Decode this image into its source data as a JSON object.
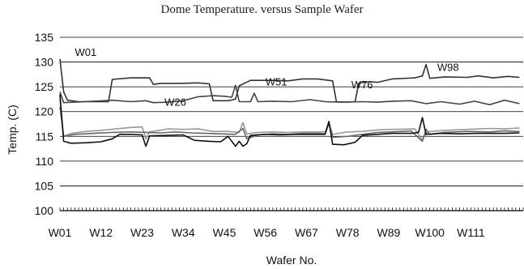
{
  "chart_data": {
    "type": "line",
    "title": "Dome Temperature. versus Sample Wafer",
    "xlabel": "Wafer No.",
    "ylabel": "Temp. (C)",
    "ylim": [
      100,
      135
    ],
    "yticks": [
      "135",
      "130",
      "125",
      "120",
      "115",
      "110",
      "105",
      "100"
    ],
    "ytick_values": [
      135,
      130,
      125,
      120,
      115,
      110,
      105,
      100
    ],
    "xtick_labels": [
      "W01",
      "W12",
      "W23",
      "W34",
      "W45",
      "W56",
      "W67",
      "W78",
      "W89",
      "W100",
      "W111"
    ],
    "xtick_positions": [
      1,
      12,
      23,
      34,
      45,
      56,
      67,
      78,
      89,
      100,
      111
    ],
    "xlim": [
      1,
      125
    ],
    "grid": true,
    "annotations": [
      {
        "text": "W01",
        "x": 5,
        "y": 131.2
      },
      {
        "text": "W26",
        "x": 29,
        "y": 121.2
      },
      {
        "text": "W51",
        "x": 56,
        "y": 125.3
      },
      {
        "text": "W76",
        "x": 79,
        "y": 124.7
      },
      {
        "text": "W98",
        "x": 102,
        "y": 128.2
      }
    ],
    "series": [
      {
        "color": "#333333",
        "points": [
          [
            1,
            130.6
          ],
          [
            2,
            124.0
          ],
          [
            3,
            122.3
          ],
          [
            6,
            122.0
          ],
          [
            10,
            122.0
          ],
          [
            14,
            122.0
          ],
          [
            15,
            126.5
          ],
          [
            20,
            126.8
          ],
          [
            25,
            126.8
          ],
          [
            26,
            125.5
          ],
          [
            28,
            125.7
          ],
          [
            33,
            125.7
          ],
          [
            38,
            125.8
          ],
          [
            41,
            125.6
          ],
          [
            42,
            122.2
          ],
          [
            46,
            122.2
          ],
          [
            48,
            122.5
          ],
          [
            49,
            125.2
          ],
          [
            52,
            126.3
          ],
          [
            58,
            126.3
          ],
          [
            62,
            126.2
          ],
          [
            66,
            126.6
          ],
          [
            70,
            126.6
          ],
          [
            74,
            126.2
          ],
          [
            75,
            122.0
          ],
          [
            78,
            121.9
          ],
          [
            80,
            122.0
          ],
          [
            81,
            125.8
          ],
          [
            84,
            126.0
          ],
          [
            86,
            125.9
          ],
          [
            90,
            126.6
          ],
          [
            96,
            126.8
          ],
          [
            98,
            127.2
          ],
          [
            99,
            129.5
          ],
          [
            100,
            126.7
          ],
          [
            104,
            127.0
          ],
          [
            110,
            126.9
          ],
          [
            113,
            127.2
          ],
          [
            117,
            126.8
          ],
          [
            121,
            127.1
          ],
          [
            124,
            126.9
          ]
        ]
      },
      {
        "color": "#444444",
        "points": [
          [
            1,
            124.0
          ],
          [
            2,
            121.8
          ],
          [
            5,
            121.9
          ],
          [
            10,
            122.1
          ],
          [
            15,
            122.3
          ],
          [
            20,
            122.0
          ],
          [
            24,
            122.2
          ],
          [
            26,
            121.8
          ],
          [
            30,
            121.9
          ],
          [
            34,
            122.2
          ],
          [
            38,
            123.0
          ],
          [
            42,
            123.2
          ],
          [
            45,
            123.1
          ],
          [
            47,
            122.9
          ],
          [
            48,
            125.3
          ],
          [
            49,
            122.0
          ],
          [
            52,
            122.0
          ],
          [
            53,
            123.7
          ],
          [
            54,
            122.0
          ],
          [
            58,
            122.1
          ],
          [
            63,
            122.0
          ],
          [
            68,
            122.4
          ],
          [
            72,
            122.0
          ],
          [
            76,
            121.9
          ],
          [
            82,
            122.0
          ],
          [
            86,
            121.9
          ],
          [
            90,
            122.1
          ],
          [
            95,
            122.2
          ],
          [
            99,
            121.6
          ],
          [
            103,
            122.0
          ],
          [
            108,
            121.5
          ],
          [
            112,
            122.1
          ],
          [
            116,
            121.4
          ],
          [
            120,
            122.3
          ],
          [
            124,
            121.6
          ]
        ]
      },
      {
        "color": "#999999",
        "points": [
          [
            1,
            122.5
          ],
          [
            2,
            115.0
          ],
          [
            4,
            115.6
          ],
          [
            8,
            116.0
          ],
          [
            12,
            116.2
          ],
          [
            16,
            116.5
          ],
          [
            20,
            116.8
          ],
          [
            23,
            116.9
          ],
          [
            24,
            114.5
          ],
          [
            25,
            115.9
          ],
          [
            30,
            116.5
          ],
          [
            34,
            116.4
          ],
          [
            38,
            116.5
          ],
          [
            42,
            116.0
          ],
          [
            46,
            116.0
          ],
          [
            49,
            115.8
          ],
          [
            50,
            117.8
          ],
          [
            51,
            115.5
          ],
          [
            54,
            115.8
          ],
          [
            58,
            115.9
          ],
          [
            62,
            115.8
          ],
          [
            66,
            115.9
          ],
          [
            70,
            115.9
          ],
          [
            72,
            115.9
          ],
          [
            73,
            117.8
          ],
          [
            74,
            115.4
          ],
          [
            78,
            115.9
          ],
          [
            82,
            116.0
          ],
          [
            86,
            116.3
          ],
          [
            90,
            116.4
          ],
          [
            96,
            116.5
          ],
          [
            98,
            114.2
          ],
          [
            99,
            115.6
          ],
          [
            100,
            116.0
          ],
          [
            104,
            116.2
          ],
          [
            110,
            116.4
          ],
          [
            116,
            116.6
          ],
          [
            120,
            116.5
          ],
          [
            124,
            116.7
          ]
        ]
      },
      {
        "color": "#666666",
        "points": [
          [
            1,
            121.0
          ],
          [
            2,
            115.0
          ],
          [
            5,
            115.4
          ],
          [
            10,
            115.6
          ],
          [
            15,
            115.8
          ],
          [
            20,
            115.9
          ],
          [
            24,
            115.8
          ],
          [
            28,
            115.7
          ],
          [
            32,
            115.9
          ],
          [
            36,
            115.7
          ],
          [
            40,
            115.6
          ],
          [
            44,
            115.5
          ],
          [
            48,
            115.4
          ],
          [
            50,
            116.6
          ],
          [
            51,
            114.5
          ],
          [
            54,
            115.3
          ],
          [
            58,
            115.5
          ],
          [
            62,
            115.4
          ],
          [
            66,
            115.6
          ],
          [
            70,
            115.6
          ],
          [
            72,
            115.5
          ],
          [
            73,
            117.6
          ],
          [
            74,
            114.8
          ],
          [
            78,
            115.0
          ],
          [
            82,
            115.4
          ],
          [
            86,
            115.8
          ],
          [
            90,
            115.9
          ],
          [
            95,
            116.1
          ],
          [
            98,
            114.0
          ],
          [
            99,
            116.4
          ],
          [
            100,
            115.4
          ],
          [
            104,
            115.8
          ],
          [
            110,
            116.0
          ],
          [
            116,
            115.9
          ],
          [
            120,
            116.1
          ],
          [
            124,
            116.0
          ]
        ]
      },
      {
        "color": "#111111",
        "points": [
          [
            1,
            123.5
          ],
          [
            2,
            114.0
          ],
          [
            4,
            113.6
          ],
          [
            8,
            113.7
          ],
          [
            12,
            113.9
          ],
          [
            15,
            114.5
          ],
          [
            17,
            115.4
          ],
          [
            20,
            115.4
          ],
          [
            23,
            115.3
          ],
          [
            24,
            113.0
          ],
          [
            25,
            115.1
          ],
          [
            30,
            115.2
          ],
          [
            34,
            115.3
          ],
          [
            37,
            114.2
          ],
          [
            41,
            114.0
          ],
          [
            44,
            113.9
          ],
          [
            46,
            115.0
          ],
          [
            48,
            113.0
          ],
          [
            49,
            114.0
          ],
          [
            50,
            113.0
          ],
          [
            51,
            113.5
          ],
          [
            52,
            115.2
          ],
          [
            56,
            115.4
          ],
          [
            60,
            115.3
          ],
          [
            64,
            115.4
          ],
          [
            68,
            115.4
          ],
          [
            72,
            115.4
          ],
          [
            73,
            118.0
          ],
          [
            74,
            113.4
          ],
          [
            77,
            113.3
          ],
          [
            80,
            113.8
          ],
          [
            82,
            115.2
          ],
          [
            86,
            115.4
          ],
          [
            90,
            115.6
          ],
          [
            95,
            115.6
          ],
          [
            97,
            115.8
          ],
          [
            98,
            118.8
          ],
          [
            99,
            115.4
          ],
          [
            103,
            115.6
          ],
          [
            108,
            115.5
          ],
          [
            112,
            115.6
          ],
          [
            116,
            115.6
          ],
          [
            120,
            115.6
          ],
          [
            124,
            115.7
          ]
        ]
      }
    ]
  }
}
